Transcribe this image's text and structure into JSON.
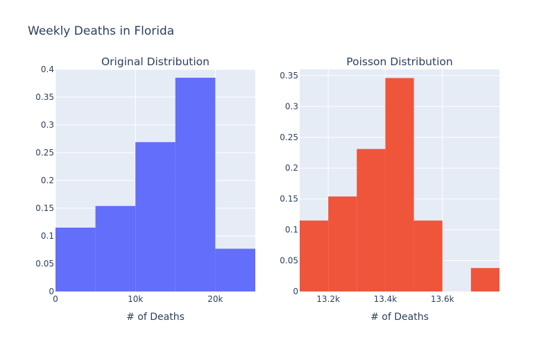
{
  "title": "Weekly Deaths in Florida",
  "colors": {
    "plot_bg": "#e5ecf6",
    "grid": "#ffffff",
    "text": "#2a3f5f"
  },
  "chart_data": [
    {
      "type": "bar",
      "subtitle": "Original Distribution",
      "xlabel": "# of Deaths",
      "color": "#636efa",
      "xlim": [
        0,
        25000
      ],
      "ylim": [
        0,
        0.4
      ],
      "bins": [
        {
          "x0": 0,
          "x1": 5000,
          "value": 0.115
        },
        {
          "x0": 5000,
          "x1": 10000,
          "value": 0.154
        },
        {
          "x0": 10000,
          "x1": 15000,
          "value": 0.269
        },
        {
          "x0": 15000,
          "x1": 20000,
          "value": 0.385
        },
        {
          "x0": 20000,
          "x1": 25000,
          "value": 0.077
        }
      ],
      "x_ticks": [
        {
          "value": 0,
          "label": "0"
        },
        {
          "value": 10000,
          "label": "10k"
        },
        {
          "value": 20000,
          "label": "20k"
        }
      ],
      "y_ticks": [
        {
          "value": 0,
          "label": "0"
        },
        {
          "value": 0.05,
          "label": "0.05"
        },
        {
          "value": 0.1,
          "label": "0.1"
        },
        {
          "value": 0.15,
          "label": "0.15"
        },
        {
          "value": 0.2,
          "label": "0.2"
        },
        {
          "value": 0.25,
          "label": "0.25"
        },
        {
          "value": 0.3,
          "label": "0.3"
        },
        {
          "value": 0.35,
          "label": "0.35"
        },
        {
          "value": 0.4,
          "label": "0.4"
        }
      ]
    },
    {
      "type": "bar",
      "subtitle": "Poisson Distribution",
      "xlabel": "# of Deaths",
      "color": "#ef553b",
      "xlim": [
        13100,
        13800
      ],
      "ylim": [
        0,
        0.36
      ],
      "bins": [
        {
          "x0": 13100,
          "x1": 13200,
          "value": 0.115
        },
        {
          "x0": 13200,
          "x1": 13300,
          "value": 0.154
        },
        {
          "x0": 13300,
          "x1": 13400,
          "value": 0.231
        },
        {
          "x0": 13400,
          "x1": 13500,
          "value": 0.346
        },
        {
          "x0": 13500,
          "x1": 13600,
          "value": 0.115
        },
        {
          "x0": 13600,
          "x1": 13700,
          "value": 0
        },
        {
          "x0": 13700,
          "x1": 13800,
          "value": 0.038
        }
      ],
      "x_ticks": [
        {
          "value": 13200,
          "label": "13.2k"
        },
        {
          "value": 13400,
          "label": "13.4k"
        },
        {
          "value": 13600,
          "label": "13.6k"
        }
      ],
      "y_ticks": [
        {
          "value": 0,
          "label": "0"
        },
        {
          "value": 0.05,
          "label": "0.05"
        },
        {
          "value": 0.1,
          "label": "0.1"
        },
        {
          "value": 0.15,
          "label": "0.15"
        },
        {
          "value": 0.2,
          "label": "0.2"
        },
        {
          "value": 0.25,
          "label": "0.25"
        },
        {
          "value": 0.3,
          "label": "0.3"
        },
        {
          "value": 0.35,
          "label": "0.35"
        }
      ]
    }
  ]
}
